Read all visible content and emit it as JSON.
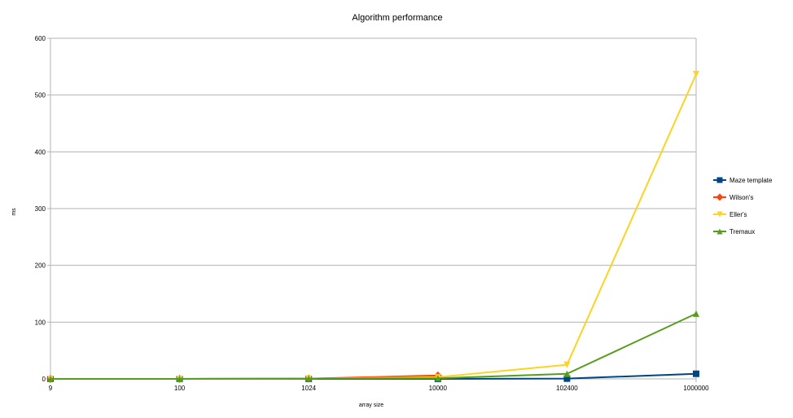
{
  "chart_data": {
    "type": "line",
    "title": "Algorithm performance",
    "xlabel": "array size",
    "ylabel": "ms",
    "categories": [
      "9",
      "100",
      "1024",
      "10000",
      "102400",
      "1000000"
    ],
    "ylim": [
      0,
      600
    ],
    "yticks": [
      0,
      100,
      200,
      300,
      400,
      500,
      600
    ],
    "grid": "horizontal",
    "legend_position": "right",
    "series": [
      {
        "name": "Maze template",
        "color": "#004586",
        "marker": "square",
        "values": [
          0,
          0,
          0,
          0,
          0.5,
          9
        ]
      },
      {
        "name": "Wilson's",
        "color": "#ff420e",
        "marker": "diamond",
        "values": [
          0,
          0,
          0.5,
          6,
          null,
          null
        ]
      },
      {
        "name": "Eller's",
        "color": "#ffd320",
        "marker": "triangle-down",
        "values": [
          0,
          0,
          0.5,
          3,
          25,
          537
        ]
      },
      {
        "name": "Tremaux",
        "color": "#579d1c",
        "marker": "triangle-up",
        "values": [
          0,
          0,
          0.5,
          1,
          9,
          115
        ]
      }
    ]
  }
}
